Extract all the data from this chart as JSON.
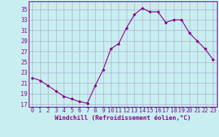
{
  "x": [
    0,
    1,
    2,
    3,
    4,
    5,
    6,
    7,
    8,
    9,
    10,
    11,
    12,
    13,
    14,
    15,
    16,
    17,
    18,
    19,
    20,
    21,
    22,
    23
  ],
  "y": [
    22.0,
    21.5,
    20.5,
    19.5,
    18.5,
    18.0,
    17.5,
    17.2,
    20.5,
    23.5,
    27.5,
    28.5,
    31.5,
    34.0,
    35.2,
    34.5,
    34.5,
    32.5,
    33.0,
    33.0,
    30.5,
    29.0,
    27.5,
    25.5
  ],
  "line_color": "#880088",
  "marker": "D",
  "marker_size": 2.0,
  "bg_color": "#c8eef0",
  "grid_color": "#aaaacc",
  "xlabel": "Windchill (Refroidissement éolien,°C)",
  "xlabel_fontsize": 6.5,
  "tick_fontsize": 6.0,
  "ylabel_ticks": [
    17,
    19,
    21,
    23,
    25,
    27,
    29,
    31,
    33,
    35
  ],
  "xticks": [
    0,
    1,
    2,
    3,
    4,
    5,
    6,
    7,
    8,
    9,
    10,
    11,
    12,
    13,
    14,
    15,
    16,
    17,
    18,
    19,
    20,
    21,
    22,
    23
  ],
  "ylim": [
    16.5,
    36.5
  ],
  "xlim": [
    -0.5,
    23.5
  ],
  "linewidth": 0.9
}
